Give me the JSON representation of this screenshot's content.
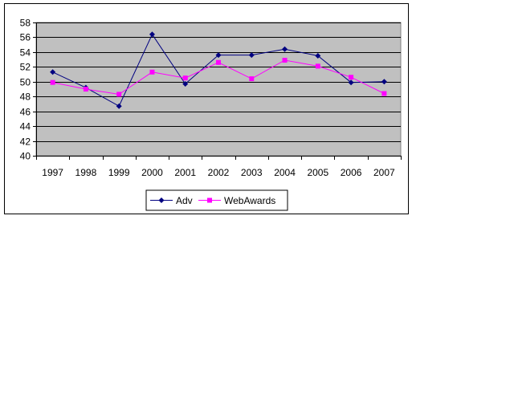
{
  "chart_data": {
    "type": "line",
    "title": "",
    "xlabel": "",
    "ylabel": "",
    "categories": [
      "1997",
      "1998",
      "1999",
      "2000",
      "2001",
      "2002",
      "2003",
      "2004",
      "2005",
      "2006",
      "2007"
    ],
    "ylim": [
      40,
      58
    ],
    "yticks": [
      40,
      42,
      44,
      46,
      48,
      50,
      52,
      54,
      56,
      58
    ],
    "grid": true,
    "legend_position": "bottom",
    "plot_background": "#c0c0c0",
    "series": [
      {
        "name": "Adv",
        "color": "#000080",
        "marker": "diamond",
        "values": [
          51.3,
          49.2,
          46.7,
          56.4,
          49.7,
          53.6,
          53.6,
          54.4,
          53.5,
          49.9,
          50.0
        ]
      },
      {
        "name": "WebAwards",
        "color": "#ff00ff",
        "marker": "square",
        "values": [
          49.9,
          49.0,
          48.3,
          51.3,
          50.5,
          52.6,
          50.4,
          52.9,
          52.1,
          50.6,
          48.4
        ]
      }
    ]
  }
}
